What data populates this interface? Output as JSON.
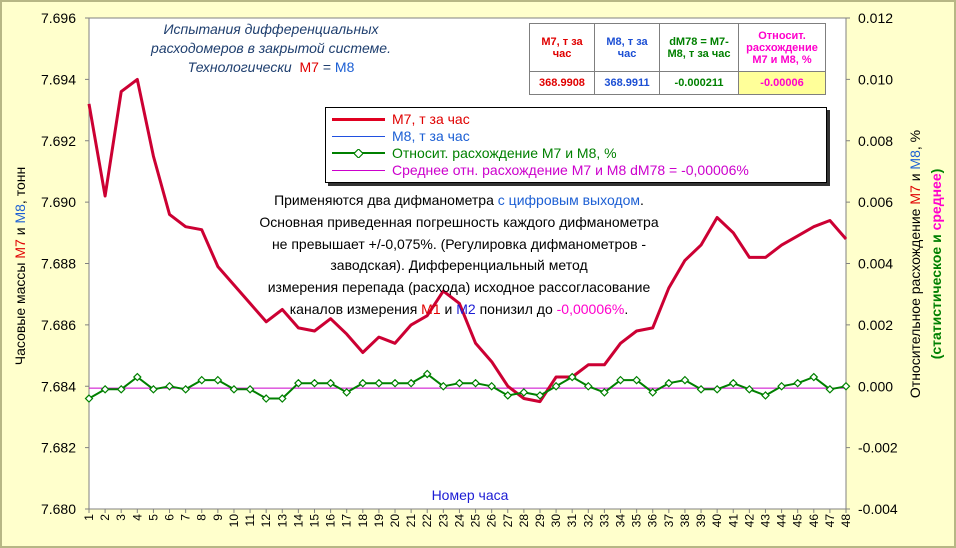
{
  "title": {
    "line1": "Испытания дифференциальных",
    "line2": "расходомеров в закрытой системе.",
    "line3_prefix": "Технологически",
    "line3_m7": "М7",
    "line3_eq": "=",
    "line3_m8": "М8"
  },
  "table": {
    "headers": [
      "М7, т за час",
      "М8, т за час",
      "dM78 = М7-М8, т за час",
      "Относит. расхождение М7 и М8, %"
    ],
    "values": [
      "368.9908",
      "368.9911",
      "-0.000211",
      "-0.00006"
    ]
  },
  "legend": {
    "items": [
      {
        "label": "М7, т за час",
        "color": "#e00020"
      },
      {
        "label": "М8, т за час",
        "color": "#2050e0"
      },
      {
        "label": "Относит. расхождение М7 и М8, %",
        "color": "#008000"
      },
      {
        "label": "Среднее отн. расхождение М7 и М8 dM78 = -0,00006%",
        "color": "#cc00cc"
      }
    ]
  },
  "annotation": {
    "l1a": "Применяются два дифманометра ",
    "l1b": "с цифровым выходом",
    "l1c": ".",
    "l2": "Основная приведенная погрешность каждого дифманометра",
    "l3": "не превышает +/-0,075%. (Регулировка дифманометров -",
    "l4": "заводская). Дифференциальный метод",
    "l5": "измерения перепада (расхода) исходное рассогласование",
    "l6a": "каналов измерения ",
    "l6b": "М1",
    "l6c": " и ",
    "l6d": "М2",
    "l6e": " понизил до ",
    "l6f": "-0,00006%",
    "l6g": "."
  },
  "axes": {
    "xlabel": "Номер часа",
    "ylabel_left_a": "Часовые массы ",
    "ylabel_left_b": "М7",
    "ylabel_left_c": " и ",
    "ylabel_left_d": "М8",
    "ylabel_left_e": ", тонн",
    "ylabel_right_a": "Относительное расхождение ",
    "ylabel_right_b": "М7",
    "ylabel_right_c": " и ",
    "ylabel_right_d": "М8",
    "ylabel_right_e": ", %",
    "ylabel_right2_a": "(статистическое и ",
    "ylabel_right2_b": "среднее",
    "ylabel_right2_c": ")"
  },
  "chart_data": {
    "type": "line",
    "x": [
      1,
      2,
      3,
      4,
      5,
      6,
      7,
      8,
      9,
      10,
      11,
      12,
      13,
      14,
      15,
      16,
      17,
      18,
      19,
      20,
      21,
      22,
      23,
      24,
      25,
      26,
      27,
      28,
      29,
      30,
      31,
      32,
      33,
      34,
      35,
      36,
      37,
      38,
      39,
      40,
      41,
      42,
      43,
      44,
      45,
      46,
      47,
      48
    ],
    "y_left_lim": [
      7.68,
      7.696
    ],
    "y_left_ticks": [
      "7.680",
      "7.682",
      "7.684",
      "7.686",
      "7.688",
      "7.690",
      "7.692",
      "7.694",
      "7.696"
    ],
    "y_right_lim": [
      -0.004,
      0.012
    ],
    "y_right_ticks": [
      "-0.004",
      "-0.002",
      "0.000",
      "0.002",
      "0.004",
      "0.006",
      "0.008",
      "0.010",
      "0.012"
    ],
    "series": [
      {
        "name": "М7, т за час",
        "axis": "left",
        "color": "#cc0033",
        "values": [
          7.6932,
          7.6902,
          7.6936,
          7.694,
          7.6915,
          7.6896,
          7.6892,
          7.6891,
          7.6879,
          7.6873,
          7.6867,
          7.6861,
          7.6865,
          7.6859,
          7.6858,
          7.6862,
          7.6857,
          7.6851,
          7.6856,
          7.6854,
          7.686,
          7.6863,
          7.6871,
          7.6867,
          7.6854,
          7.6848,
          7.684,
          7.6836,
          7.6835,
          7.6843,
          7.6843,
          7.6847,
          7.6847,
          7.6854,
          7.6858,
          7.6859,
          7.6872,
          7.6881,
          7.6886,
          7.6895,
          7.689,
          7.6882,
          7.6882,
          7.6886,
          7.6889,
          7.6892,
          7.6894,
          7.6888
        ]
      },
      {
        "name": "М8, т за час",
        "axis": "left",
        "color": "#2050e0",
        "values": [
          7.6932,
          7.6902,
          7.6936,
          7.694,
          7.6915,
          7.6896,
          7.6892,
          7.6891,
          7.6879,
          7.6873,
          7.6867,
          7.6861,
          7.6865,
          7.6859,
          7.6858,
          7.6862,
          7.6857,
          7.6851,
          7.6856,
          7.6854,
          7.686,
          7.6863,
          7.6871,
          7.6867,
          7.6854,
          7.6848,
          7.684,
          7.6836,
          7.6835,
          7.6843,
          7.6843,
          7.6847,
          7.6847,
          7.6854,
          7.6858,
          7.6859,
          7.6872,
          7.6881,
          7.6886,
          7.6895,
          7.689,
          7.6882,
          7.6882,
          7.6886,
          7.6889,
          7.6892,
          7.6894,
          7.6888
        ]
      },
      {
        "name": "Относит. расхождение М7 и М8, %",
        "axis": "right",
        "color": "#008000",
        "values": [
          -0.0004,
          -0.0001,
          -0.0001,
          0.0003,
          -0.0001,
          0.0,
          -0.0001,
          0.0002,
          0.0002,
          -0.0001,
          -0.0001,
          -0.0004,
          -0.0004,
          0.0001,
          0.0001,
          0.0001,
          -0.0002,
          0.0001,
          0.0001,
          0.0001,
          0.0001,
          0.0004,
          0.0,
          0.0001,
          0.0001,
          0.0,
          -0.0003,
          -0.0002,
          -0.0003,
          0.0,
          0.0003,
          0.0,
          -0.0002,
          0.0002,
          0.0002,
          -0.0002,
          0.0001,
          0.0002,
          -0.0001,
          -0.0001,
          0.0001,
          -0.0001,
          -0.0003,
          0.0,
          0.0001,
          0.0003,
          -0.0001,
          0.0
        ]
      },
      {
        "name": "Среднее отн. расхождение М7 и М8 dM78 = -0,00006%",
        "axis": "right",
        "color": "#cc00cc",
        "values": [
          -6e-05,
          -6e-05,
          -6e-05,
          -6e-05,
          -6e-05,
          -6e-05,
          -6e-05,
          -6e-05,
          -6e-05,
          -6e-05,
          -6e-05,
          -6e-05,
          -6e-05,
          -6e-05,
          -6e-05,
          -6e-05,
          -6e-05,
          -6e-05,
          -6e-05,
          -6e-05,
          -6e-05,
          -6e-05,
          -6e-05,
          -6e-05,
          -6e-05,
          -6e-05,
          -6e-05,
          -6e-05,
          -6e-05,
          -6e-05,
          -6e-05,
          -6e-05,
          -6e-05,
          -6e-05,
          -6e-05,
          -6e-05,
          -6e-05,
          -6e-05,
          -6e-05,
          -6e-05,
          -6e-05,
          -6e-05,
          -6e-05,
          -6e-05,
          -6e-05,
          -6e-05,
          -6e-05,
          -6e-05
        ]
      }
    ]
  }
}
